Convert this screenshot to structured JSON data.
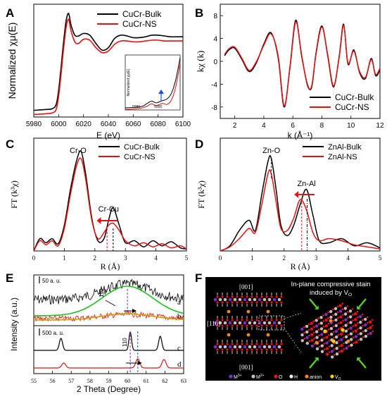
{
  "panels": [
    {
      "letter": "A"
    },
    {
      "letter": "B"
    },
    {
      "letter": "C"
    },
    {
      "letter": "D"
    },
    {
      "letter": "E"
    },
    {
      "letter": "F"
    }
  ],
  "chart_data": [
    {
      "id": "A",
      "type": "line",
      "xlabel": "E (eV)",
      "ylabel": "Normalized χμ(E)",
      "xlim": [
        5980,
        6100
      ],
      "ylim": [
        0,
        1.35
      ],
      "xticks": [
        5980,
        6000,
        6020,
        6040,
        6060,
        6080,
        6100
      ],
      "legend": "top-right",
      "series": [
        {
          "name": "CuCr-Bulk",
          "color": "#000000",
          "x": [
            5980,
            5990,
            5995,
            5998,
            6000,
            6002,
            6004,
            6006,
            6008,
            6010,
            6013,
            6016,
            6020,
            6025,
            6030,
            6035,
            6040,
            6045,
            6050,
            6055,
            6060,
            6065,
            6070,
            6075,
            6080,
            6085,
            6090,
            6095,
            6100
          ],
          "y": [
            0.08,
            0.09,
            0.1,
            0.15,
            0.32,
            0.6,
            0.9,
            1.15,
            1.24,
            1.1,
            0.98,
            0.97,
            1.0,
            0.98,
            0.88,
            0.8,
            0.83,
            0.94,
            0.98,
            0.97,
            0.95,
            0.95,
            0.96,
            0.98,
            0.98,
            0.97,
            0.96,
            0.96,
            0.96
          ]
        },
        {
          "name": "CuCr-NS",
          "color": "#e81010",
          "x": [
            5980,
            5990,
            5995,
            5998,
            6000,
            6002,
            6004,
            6006,
            6008,
            6010,
            6013,
            6016,
            6020,
            6025,
            6030,
            6035,
            6040,
            6045,
            6050,
            6055,
            6060,
            6065,
            6070,
            6075,
            6080,
            6085,
            6090,
            6095,
            6100
          ],
          "y": [
            0.03,
            0.04,
            0.05,
            0.09,
            0.25,
            0.52,
            0.82,
            1.07,
            1.17,
            1.03,
            0.9,
            0.88,
            0.93,
            0.92,
            0.83,
            0.77,
            0.79,
            0.87,
            0.91,
            0.91,
            0.9,
            0.9,
            0.91,
            0.92,
            0.92,
            0.91,
            0.91,
            0.91,
            0.91
          ]
        }
      ],
      "inset": {
        "ylabel": "Normalized χμ(E)",
        "xticks": [
          5980,
          5990
        ],
        "xlim": [
          5975,
          6000
        ],
        "series": [
          {
            "name": "CuCr-Bulk",
            "color": "#000000",
            "x": [
              5975,
              5980,
              5983,
              5985,
              5987,
              5989,
              5990,
              5992,
              5994,
              5996,
              5998,
              6000
            ],
            "y": [
              0.04,
              0.05,
              0.07,
              0.12,
              0.16,
              0.13,
              0.14,
              0.17,
              0.2,
              0.3,
              0.55,
              0.95
            ]
          },
          {
            "name": "CuCr-NS",
            "color": "#e81010",
            "x": [
              5975,
              5980,
              5983,
              5985,
              5987,
              5989,
              5990,
              5992,
              5994,
              5996,
              5998,
              6000
            ],
            "y": [
              0.01,
              0.02,
              0.04,
              0.07,
              0.11,
              0.08,
              0.09,
              0.12,
              0.1,
              0.18,
              0.42,
              0.85
            ]
          }
        ]
      }
    },
    {
      "id": "B",
      "type": "line",
      "xlabel": "k (Å⁻¹)",
      "ylabel": "kχ (k)",
      "xlim": [
        1,
        12
      ],
      "ylim": [
        -10,
        10
      ],
      "xticks": [
        2,
        4,
        6,
        8,
        10,
        12
      ],
      "yticks": [
        -8,
        -4,
        0,
        4,
        8
      ],
      "legend": "bottom-right",
      "series": [
        {
          "name": "CuCr-Bulk",
          "color": "#000000",
          "x": [
            1.3,
            1.6,
            2.0,
            2.5,
            3.0,
            3.5,
            4.0,
            4.5,
            5.0,
            5.4,
            5.8,
            6.2,
            6.6,
            7.0,
            7.3,
            7.6,
            8.0,
            8.4,
            8.8,
            9.2,
            9.5,
            9.8,
            10.2,
            10.6,
            11.0,
            11.4,
            11.7,
            12.0
          ],
          "y": [
            1.0,
            2.0,
            2.3,
            0.3,
            -1.8,
            -0.2,
            3.0,
            5.0,
            0.5,
            -8.0,
            -1.0,
            7.2,
            1.0,
            -4.0,
            -4.5,
            1.5,
            6.2,
            1.0,
            -4.5,
            1.0,
            6.5,
            -0.5,
            2.0,
            -2.0,
            -3.0,
            0.5,
            -2.5,
            -1.5
          ]
        },
        {
          "name": "CuCr-NS",
          "color": "#e81010",
          "x": [
            1.3,
            1.6,
            2.0,
            2.5,
            3.0,
            3.5,
            4.0,
            4.5,
            5.0,
            5.4,
            5.8,
            6.2,
            6.6,
            7.0,
            7.3,
            7.6,
            8.0,
            8.4,
            8.8,
            9.2,
            9.5,
            9.8,
            10.2,
            10.6,
            11.0,
            11.4,
            11.7,
            12.0
          ],
          "y": [
            1.2,
            2.2,
            2.5,
            0.5,
            -1.6,
            0.0,
            2.8,
            4.8,
            0.8,
            -7.8,
            -1.2,
            6.9,
            1.2,
            -4.2,
            -4.3,
            1.3,
            6.0,
            1.2,
            -4.3,
            0.8,
            6.3,
            -0.3,
            1.8,
            -1.8,
            -2.8,
            0.3,
            -2.3,
            -1.2
          ]
        }
      ]
    },
    {
      "id": "C",
      "type": "line",
      "xlabel": "R (Å)",
      "ylabel": "FT (k³χ)",
      "xlim": [
        0,
        5
      ],
      "ylim": [
        0,
        1.1
      ],
      "xticks": [
        0,
        1,
        2,
        3,
        4,
        5
      ],
      "legend": "top-right",
      "annotations": [
        "Cr-O",
        "Cr-Cu"
      ],
      "series": [
        {
          "name": "CuCr-Bulk",
          "color": "#000000",
          "x": [
            0.0,
            0.2,
            0.4,
            0.6,
            0.8,
            1.0,
            1.2,
            1.4,
            1.55,
            1.7,
            1.9,
            2.1,
            2.3,
            2.45,
            2.6,
            2.8,
            3.0,
            3.3,
            3.6,
            3.9,
            4.2,
            4.5,
            4.8,
            5.0
          ],
          "y": [
            0.0,
            0.12,
            0.08,
            0.12,
            0.07,
            0.25,
            0.6,
            0.88,
            0.97,
            0.75,
            0.32,
            0.1,
            0.12,
            0.3,
            0.42,
            0.25,
            0.08,
            0.1,
            0.04,
            0.1,
            0.05,
            0.09,
            0.03,
            0.02
          ]
        },
        {
          "name": "CuCr-NS",
          "color": "#e81010",
          "x": [
            0.0,
            0.2,
            0.4,
            0.6,
            0.8,
            1.0,
            1.2,
            1.4,
            1.55,
            1.7,
            1.9,
            2.1,
            2.3,
            2.45,
            2.6,
            2.8,
            3.0,
            3.3,
            3.6,
            3.9,
            4.2,
            4.5,
            4.8,
            5.0
          ],
          "y": [
            0.0,
            0.1,
            0.06,
            0.1,
            0.05,
            0.22,
            0.55,
            0.83,
            0.9,
            0.7,
            0.3,
            0.12,
            0.18,
            0.25,
            0.27,
            0.2,
            0.1,
            0.05,
            0.08,
            0.04,
            0.07,
            0.03,
            0.05,
            0.02
          ]
        }
      ]
    },
    {
      "id": "D",
      "type": "line",
      "xlabel": "R (Å)",
      "ylabel": "FT (k³χ)",
      "xlim": [
        0,
        5
      ],
      "ylim": [
        0,
        1.1
      ],
      "xticks": [
        0,
        1,
        2,
        3,
        4,
        5
      ],
      "legend": "top-right",
      "annotations": [
        "Zn-O",
        "Zn-Al"
      ],
      "series": [
        {
          "name": "ZnAl-Bulk",
          "color": "#000000",
          "x": [
            0.0,
            0.3,
            0.6,
            0.9,
            1.1,
            1.3,
            1.5,
            1.6,
            1.75,
            1.9,
            2.1,
            2.3,
            2.5,
            2.7,
            2.9,
            3.1,
            3.4,
            3.8,
            4.2,
            4.6,
            5.0
          ],
          "y": [
            0.0,
            0.05,
            0.2,
            0.3,
            0.2,
            0.55,
            0.88,
            0.9,
            0.6,
            0.25,
            0.15,
            0.25,
            0.45,
            0.6,
            0.35,
            0.1,
            0.08,
            0.12,
            0.05,
            0.08,
            0.03
          ]
        },
        {
          "name": "ZnAl-NS",
          "color": "#e81010",
          "x": [
            0.0,
            0.3,
            0.6,
            0.9,
            1.1,
            1.3,
            1.5,
            1.6,
            1.75,
            1.9,
            2.1,
            2.3,
            2.5,
            2.7,
            2.9,
            3.1,
            3.4,
            3.8,
            4.2,
            4.6,
            5.0
          ],
          "y": [
            0.0,
            0.04,
            0.12,
            0.22,
            0.18,
            0.45,
            0.76,
            0.75,
            0.48,
            0.22,
            0.2,
            0.32,
            0.5,
            0.4,
            0.18,
            0.1,
            0.12,
            0.1,
            0.06,
            0.04,
            0.02
          ]
        }
      ]
    },
    {
      "id": "E",
      "type": "line",
      "xlabel": "2 Theta (Degree)",
      "ylabel": "Intensity (a.u.)",
      "xlim": [
        55,
        63
      ],
      "xticks": [
        55,
        56,
        57,
        58,
        59,
        60,
        61,
        62,
        63
      ],
      "scale_top": "50 a. u.",
      "scale_bottom": "500 a. u.",
      "peak_label": "110",
      "curve_labels": [
        "a",
        "b",
        "c",
        "d"
      ]
    }
  ],
  "panel_f": {
    "label_001_top": "[001]",
    "label_110": "[110]",
    "label_001_bottom": "[001]",
    "title_line1": "In-plane compressive stain",
    "title_line2": "induced by V",
    "title_sub": "O",
    "legend": [
      {
        "symbol": "M",
        "sup": "3+",
        "color": "#7b2fd0"
      },
      {
        "symbol": "M",
        "sup": "2+",
        "color": "#c0c0c0"
      },
      {
        "symbol": "O",
        "sup": "",
        "color": "#e11"
      },
      {
        "symbol": "H",
        "sup": "",
        "color": "#eee"
      },
      {
        "symbol": "anion",
        "sup": "",
        "color": "#f08a20"
      },
      {
        "symbol": "V",
        "sub": "O",
        "color": "#f5d200"
      }
    ]
  }
}
